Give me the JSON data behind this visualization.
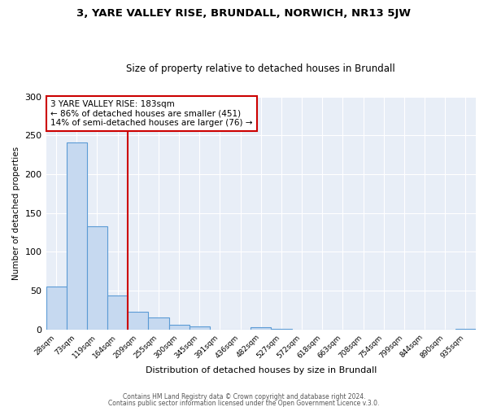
{
  "title": "3, YARE VALLEY RISE, BRUNDALL, NORWICH, NR13 5JW",
  "subtitle": "Size of property relative to detached houses in Brundall",
  "xlabel": "Distribution of detached houses by size in Brundall",
  "ylabel": "Number of detached properties",
  "bar_values": [
    55,
    241,
    133,
    44,
    23,
    15,
    6,
    4,
    0,
    0,
    3,
    1,
    0,
    0,
    0,
    0,
    0,
    0,
    0,
    0,
    1
  ],
  "bar_labels": [
    "28sqm",
    "73sqm",
    "119sqm",
    "164sqm",
    "209sqm",
    "255sqm",
    "300sqm",
    "345sqm",
    "391sqm",
    "436sqm",
    "482sqm",
    "527sqm",
    "572sqm",
    "618sqm",
    "663sqm",
    "708sqm",
    "754sqm",
    "799sqm",
    "844sqm",
    "890sqm",
    "935sqm"
  ],
  "bar_color": "#c6d9f0",
  "bar_edge_color": "#5b9bd5",
  "vline_color": "#cc0000",
  "annotation_title": "3 YARE VALLEY RISE: 183sqm",
  "annotation_line1": "← 86% of detached houses are smaller (451)",
  "annotation_line2": "14% of semi-detached houses are larger (76) →",
  "annotation_box_color": "#ffffff",
  "annotation_box_edge": "#cc0000",
  "ylim": [
    0,
    300
  ],
  "yticks": [
    0,
    50,
    100,
    150,
    200,
    250,
    300
  ],
  "footer1": "Contains HM Land Registry data © Crown copyright and database right 2024.",
  "footer2": "Contains public sector information licensed under the Open Government Licence v.3.0.",
  "background_color": "#ffffff",
  "plot_bg_color": "#e8eef7",
  "grid_color": "#ffffff"
}
